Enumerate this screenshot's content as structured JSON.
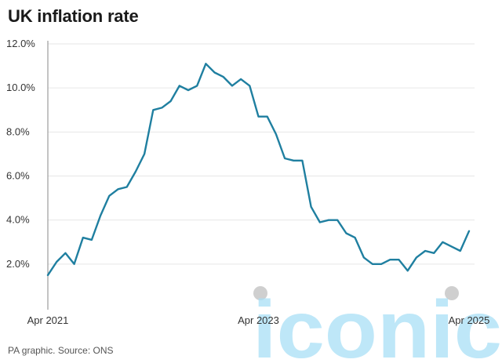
{
  "title": "UK inflation rate",
  "source": "PA graphic. Source: ONS",
  "watermark": {
    "text": "iconic",
    "color": "#a8dff5",
    "dot_color": "#cfcfcf"
  },
  "colors": {
    "line": "#1f7fa0",
    "grid": "#e6e6e6",
    "axis": "#8a8a8a"
  },
  "chart_data": {
    "type": "line",
    "title": "UK inflation rate",
    "xlabel": "",
    "ylabel": "",
    "ylim": [
      0,
      12
    ],
    "yticks": [
      2,
      4,
      6,
      8,
      10,
      12
    ],
    "ytick_labels": [
      "2.0%",
      "4.0%",
      "6.0%",
      "8.0%",
      "10.0%",
      "12.0%"
    ],
    "xtick_labels": [
      "Apr 2021",
      "Apr 2023",
      "Apr 2025"
    ],
    "xticks": [
      "2021-04",
      "2023-04",
      "2025-04"
    ],
    "grid": true,
    "x": [
      "2021-04",
      "2021-05",
      "2021-06",
      "2021-07",
      "2021-08",
      "2021-09",
      "2021-10",
      "2021-11",
      "2021-12",
      "2022-01",
      "2022-02",
      "2022-03",
      "2022-04",
      "2022-05",
      "2022-06",
      "2022-07",
      "2022-08",
      "2022-09",
      "2022-10",
      "2022-11",
      "2022-12",
      "2023-01",
      "2023-02",
      "2023-03",
      "2023-04",
      "2023-05",
      "2023-06",
      "2023-07",
      "2023-08",
      "2023-09",
      "2023-10",
      "2023-11",
      "2023-12",
      "2024-01",
      "2024-02",
      "2024-03",
      "2024-04",
      "2024-05",
      "2024-06",
      "2024-07",
      "2024-08",
      "2024-09",
      "2024-10",
      "2024-11",
      "2024-12",
      "2025-01",
      "2025-02",
      "2025-03",
      "2025-04"
    ],
    "series": [
      {
        "values": [
          1.5,
          2.1,
          2.5,
          2.0,
          3.2,
          3.1,
          4.2,
          5.1,
          5.4,
          5.5,
          6.2,
          7.0,
          9.0,
          9.1,
          9.4,
          10.1,
          9.9,
          10.1,
          11.1,
          10.7,
          10.5,
          10.1,
          10.4,
          10.1,
          8.7,
          8.7,
          7.9,
          6.8,
          6.7,
          6.7,
          4.6,
          3.9,
          4.0,
          4.0,
          3.4,
          3.2,
          2.3,
          2.0,
          2.0,
          2.2,
          2.2,
          1.7,
          2.3,
          2.6,
          2.5,
          3.0,
          2.8,
          2.6,
          3.5
        ]
      }
    ]
  }
}
